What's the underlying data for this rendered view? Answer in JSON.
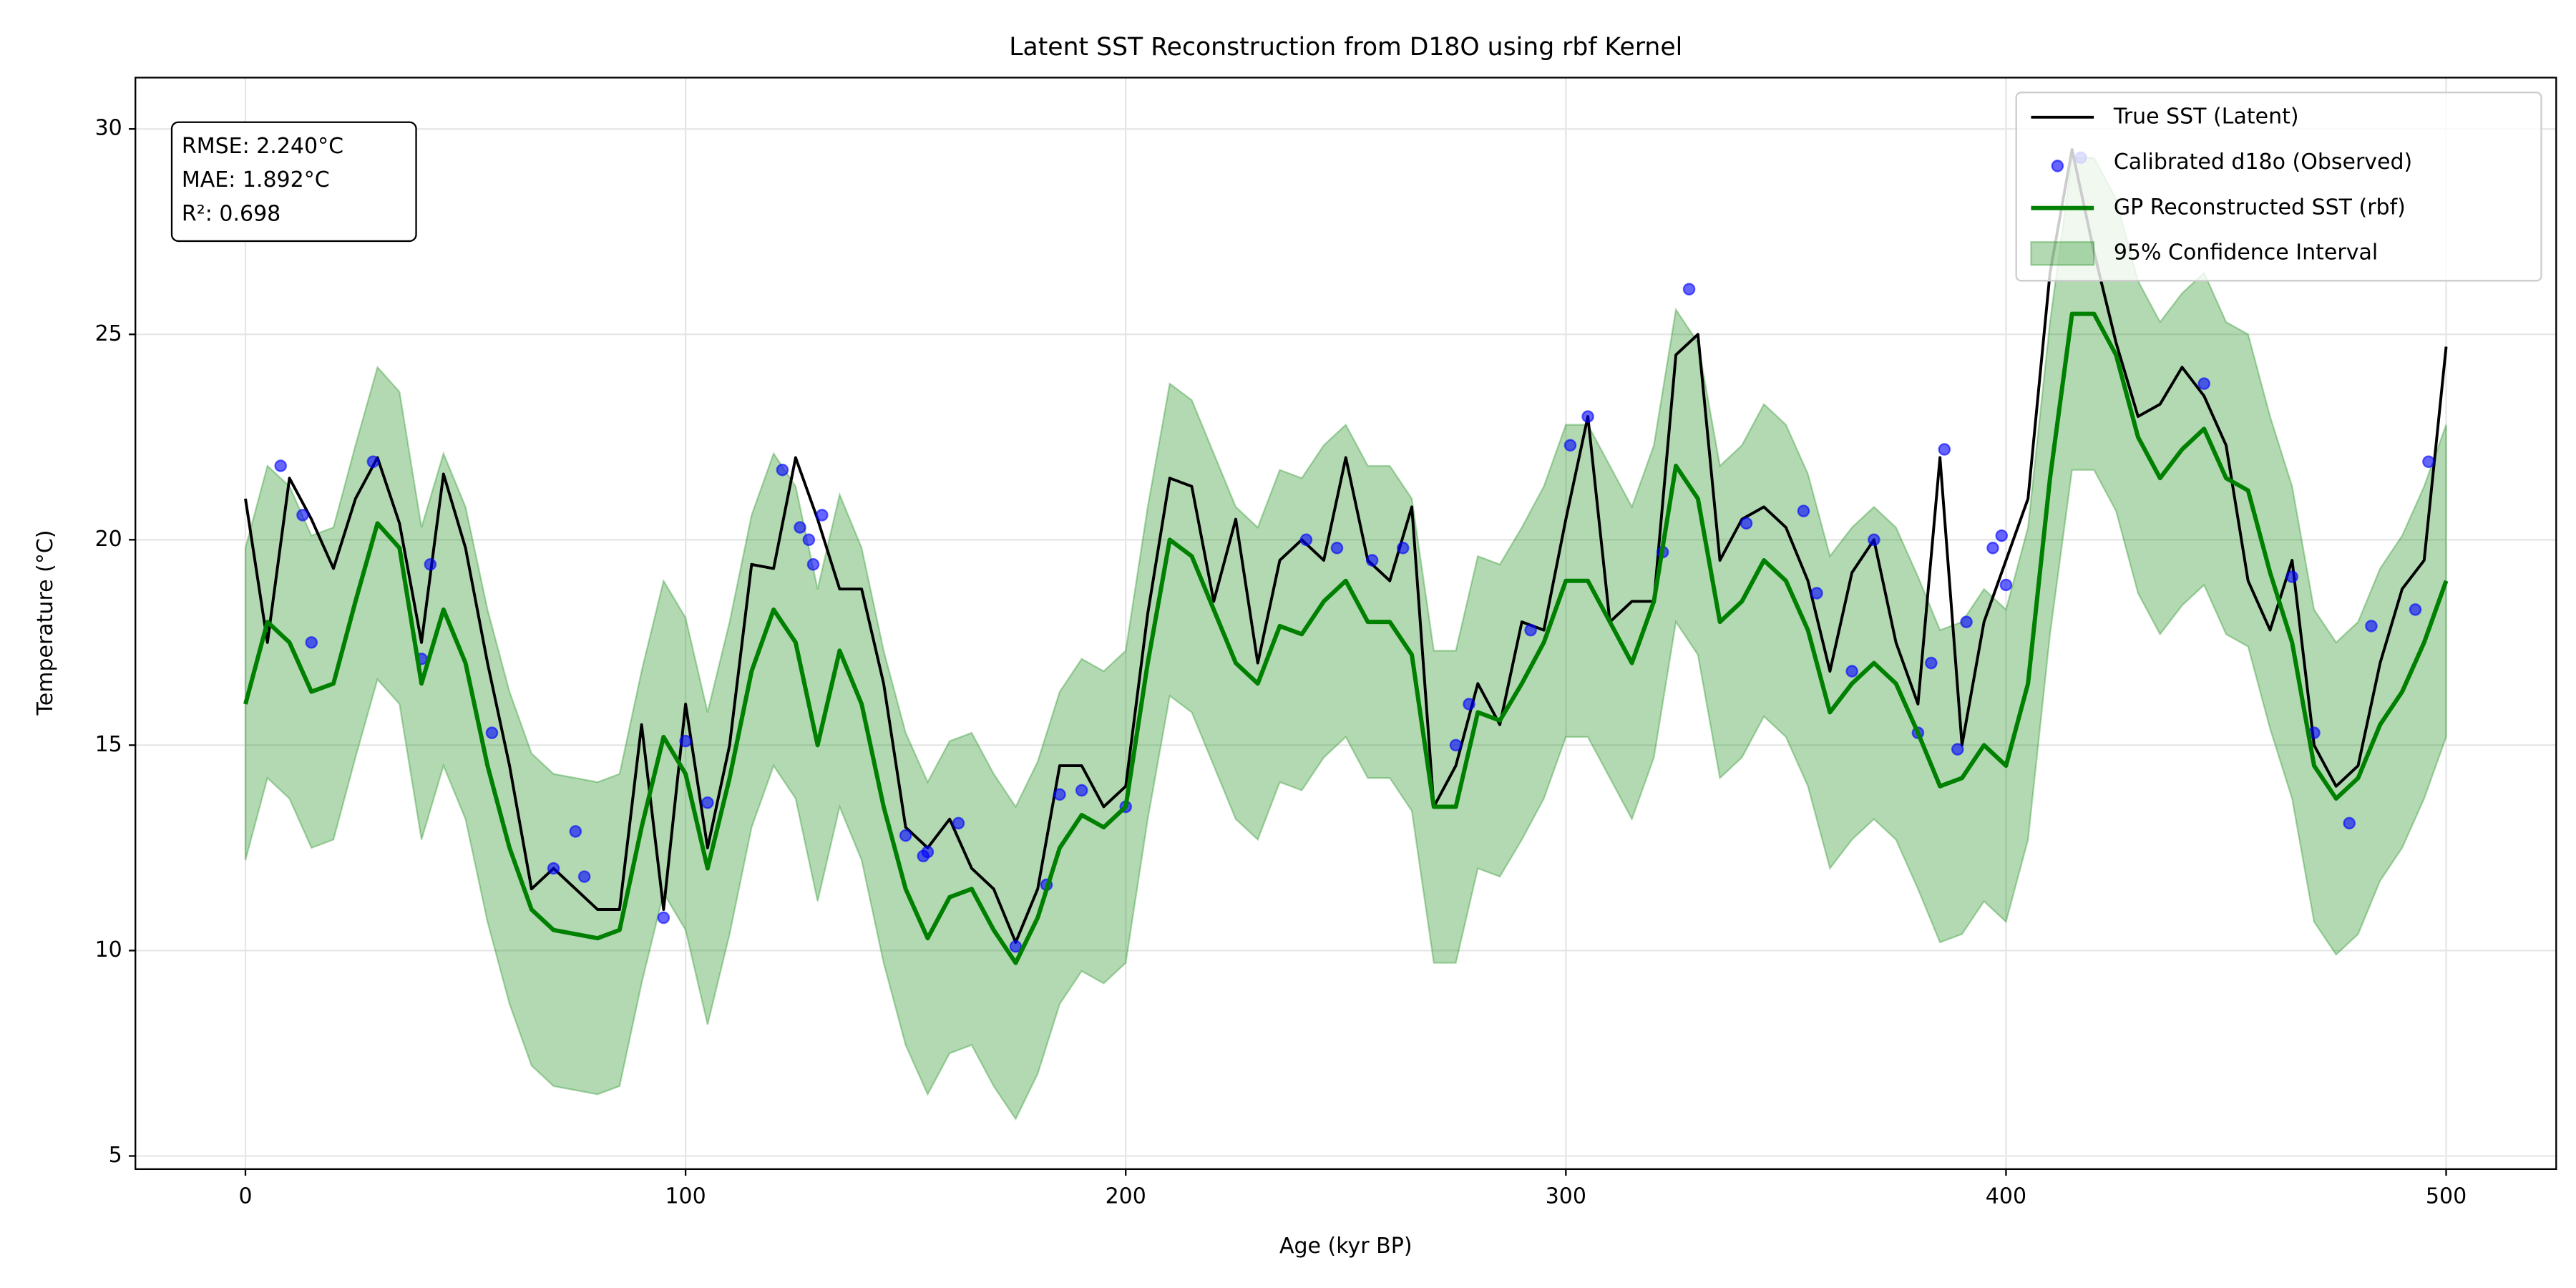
{
  "chart_data": {
    "type": "line",
    "title": "Latent SST Reconstruction from D18O using rbf Kernel",
    "xlabel": "Age (kyr BP)",
    "ylabel": "Temperature (°C)",
    "annotations": [
      "RMSE: 2.240°C",
      "MAE: 1.892°C",
      "R²: 0.698"
    ],
    "xlim": [
      -25,
      525
    ],
    "ylim": [
      4.68,
      31.25
    ],
    "xticks": [
      0,
      100,
      200,
      300,
      400,
      500
    ],
    "yticks": [
      5,
      10,
      15,
      20,
      25,
      30
    ],
    "grid": true,
    "legend": "upper right",
    "x": [
      0,
      5,
      10,
      15,
      20,
      25,
      30,
      35,
      40,
      45,
      50,
      55,
      60,
      65,
      70,
      75,
      80,
      85,
      90,
      95,
      100,
      105,
      110,
      115,
      120,
      125,
      130,
      135,
      140,
      145,
      150,
      155,
      160,
      165,
      170,
      175,
      180,
      185,
      190,
      195,
      200,
      205,
      210,
      215,
      220,
      225,
      230,
      235,
      240,
      245,
      250,
      255,
      260,
      265,
      270,
      275,
      280,
      285,
      290,
      295,
      300,
      305,
      310,
      315,
      320,
      325,
      330,
      335,
      340,
      345,
      350,
      355,
      360,
      365,
      370,
      375,
      380,
      385,
      390,
      395,
      400,
      405,
      410,
      415,
      420,
      425,
      430,
      435,
      440,
      445,
      450,
      455,
      460,
      465,
      470,
      475,
      480,
      485,
      490,
      495,
      500
    ],
    "series": [
      {
        "name": "True SST (Latent)",
        "type": "line",
        "color": "#000000",
        "values": [
          21.0,
          17.5,
          21.5,
          20.5,
          19.3,
          21.0,
          22.0,
          20.4,
          17.5,
          21.6,
          19.8,
          17.0,
          14.5,
          11.5,
          12.0,
          11.5,
          11.0,
          11.0,
          15.5,
          11.0,
          16.0,
          12.5,
          15.0,
          19.4,
          19.3,
          22.0,
          20.5,
          18.8,
          18.8,
          16.5,
          13.0,
          12.5,
          13.2,
          12.0,
          11.5,
          10.2,
          11.5,
          14.5,
          14.5,
          13.5,
          14.0,
          18.2,
          21.5,
          21.3,
          18.5,
          20.5,
          17.0,
          19.5,
          20.0,
          19.5,
          22.0,
          19.5,
          19.0,
          20.8,
          13.5,
          14.5,
          16.5,
          15.5,
          18.0,
          17.8,
          20.5,
          23.0,
          18.0,
          18.5,
          18.5,
          24.5,
          25.0,
          19.5,
          20.5,
          20.8,
          20.3,
          19.0,
          16.8,
          19.2,
          20.0,
          17.5,
          16.0,
          22.0,
          15.0,
          18.0,
          19.5,
          21.0,
          26.5,
          29.5,
          27.0,
          24.8,
          23.0,
          23.3,
          24.2,
          23.5,
          22.3,
          19.0,
          17.8,
          19.5,
          15.0,
          14.0,
          14.5,
          17.0,
          18.8,
          19.5,
          24.7
        ]
      },
      {
        "name": "Calibrated d18o (Observed)",
        "type": "scatter",
        "color": "#0000ff",
        "x": [
          8,
          13,
          15,
          29,
          40,
          42,
          56,
          70,
          75,
          77,
          95,
          100,
          105,
          122,
          126,
          128,
          129,
          131,
          150,
          154,
          155,
          162,
          175,
          182,
          185,
          190,
          200,
          241,
          248,
          256,
          263,
          275,
          278,
          292,
          301,
          305,
          322,
          328,
          341,
          354,
          357,
          365,
          370,
          380,
          383,
          386,
          389,
          391,
          397,
          399,
          400,
          417,
          445,
          465,
          470,
          478,
          483,
          493,
          496
        ],
        "values": [
          21.8,
          20.6,
          17.5,
          21.9,
          17.1,
          19.4,
          15.3,
          12.0,
          12.9,
          11.8,
          10.8,
          15.1,
          13.6,
          21.7,
          20.3,
          20.0,
          19.4,
          20.6,
          12.8,
          12.3,
          12.4,
          13.1,
          10.1,
          11.6,
          13.8,
          13.9,
          13.5,
          20.0,
          19.8,
          19.5,
          19.8,
          15.0,
          16.0,
          17.8,
          22.3,
          23.0,
          19.7,
          26.1,
          20.4,
          20.7,
          18.7,
          16.8,
          20.0,
          15.3,
          17.0,
          22.2,
          14.9,
          18.0,
          19.8,
          20.1,
          18.9,
          29.3,
          23.8,
          19.1,
          15.3,
          13.1,
          17.9,
          18.3,
          21.9
        ]
      },
      {
        "name": "GP Reconstructed SST (rbf)",
        "type": "line",
        "color": "#008000",
        "values": [
          16.0,
          18.0,
          17.5,
          16.3,
          16.5,
          18.5,
          20.4,
          19.8,
          16.5,
          18.3,
          17.0,
          14.5,
          12.5,
          11.0,
          10.5,
          10.4,
          10.3,
          10.5,
          13.0,
          15.2,
          14.3,
          12.0,
          14.2,
          16.8,
          18.3,
          17.5,
          15.0,
          17.3,
          16.0,
          13.5,
          11.5,
          10.3,
          11.3,
          11.5,
          10.5,
          9.7,
          10.8,
          12.5,
          13.3,
          13.0,
          13.5,
          17.0,
          20.0,
          19.6,
          18.3,
          17.0,
          16.5,
          17.9,
          17.7,
          18.5,
          19.0,
          18.0,
          18.0,
          17.2,
          13.5,
          13.5,
          15.8,
          15.6,
          16.5,
          17.5,
          19.0,
          19.0,
          18.0,
          17.0,
          18.5,
          21.8,
          21.0,
          18.0,
          18.5,
          19.5,
          19.0,
          17.8,
          15.8,
          16.5,
          17.0,
          16.5,
          15.3,
          14.0,
          14.2,
          15.0,
          14.5,
          16.5,
          21.5,
          25.5,
          25.5,
          24.5,
          22.5,
          21.5,
          22.2,
          22.7,
          21.5,
          21.2,
          19.2,
          17.5,
          14.5,
          13.7,
          14.2,
          15.5,
          16.3,
          17.5,
          19.0
        ]
      }
    ],
    "band": {
      "name": "95% Confidence Interval",
      "color": "#008000",
      "upper": [
        19.8,
        21.8,
        21.3,
        20.1,
        20.3,
        22.3,
        24.2,
        23.6,
        20.3,
        22.1,
        20.8,
        18.3,
        16.3,
        14.8,
        14.3,
        14.2,
        14.1,
        14.3,
        16.8,
        19.0,
        18.1,
        15.8,
        18.0,
        20.6,
        22.1,
        21.3,
        18.8,
        21.1,
        19.8,
        17.3,
        15.3,
        14.1,
        15.1,
        15.3,
        14.3,
        13.5,
        14.6,
        16.3,
        17.1,
        16.8,
        17.3,
        20.8,
        23.8,
        23.4,
        22.1,
        20.8,
        20.3,
        21.7,
        21.5,
        22.3,
        22.8,
        21.8,
        21.8,
        21.0,
        17.3,
        17.3,
        19.6,
        19.4,
        20.3,
        21.3,
        22.8,
        22.8,
        21.8,
        20.8,
        22.3,
        25.6,
        24.8,
        21.8,
        22.3,
        23.3,
        22.8,
        21.6,
        19.6,
        20.3,
        20.8,
        20.3,
        19.1,
        17.8,
        18.0,
        18.8,
        18.3,
        20.3,
        25.3,
        29.3,
        29.3,
        28.3,
        26.3,
        25.3,
        26.0,
        26.5,
        25.3,
        25.0,
        23.0,
        21.3,
        18.3,
        17.5,
        18.0,
        19.3,
        20.1,
        21.3,
        22.8
      ],
      "lower": [
        12.2,
        14.2,
        13.7,
        12.5,
        12.7,
        14.7,
        16.6,
        16.0,
        12.7,
        14.5,
        13.2,
        10.7,
        8.7,
        7.2,
        6.7,
        6.6,
        6.5,
        6.7,
        9.2,
        11.4,
        10.5,
        8.2,
        10.4,
        13.0,
        14.5,
        13.7,
        11.2,
        13.5,
        12.2,
        9.7,
        7.7,
        6.5,
        7.5,
        7.7,
        6.7,
        5.9,
        7.0,
        8.7,
        9.5,
        9.2,
        9.7,
        13.2,
        16.2,
        15.8,
        14.5,
        13.2,
        12.7,
        14.1,
        13.9,
        14.7,
        15.2,
        14.2,
        14.2,
        13.4,
        9.7,
        9.7,
        12.0,
        11.8,
        12.7,
        13.7,
        15.2,
        15.2,
        14.2,
        13.2,
        14.7,
        18.0,
        17.2,
        14.2,
        14.7,
        15.7,
        15.2,
        14.0,
        12.0,
        12.7,
        13.2,
        12.7,
        11.5,
        10.2,
        10.4,
        11.2,
        10.7,
        12.7,
        17.7,
        21.7,
        21.7,
        20.7,
        18.7,
        17.7,
        18.4,
        18.9,
        17.7,
        17.4,
        15.4,
        13.7,
        10.7,
        9.9,
        10.4,
        11.7,
        12.5,
        13.7,
        15.2
      ]
    }
  }
}
